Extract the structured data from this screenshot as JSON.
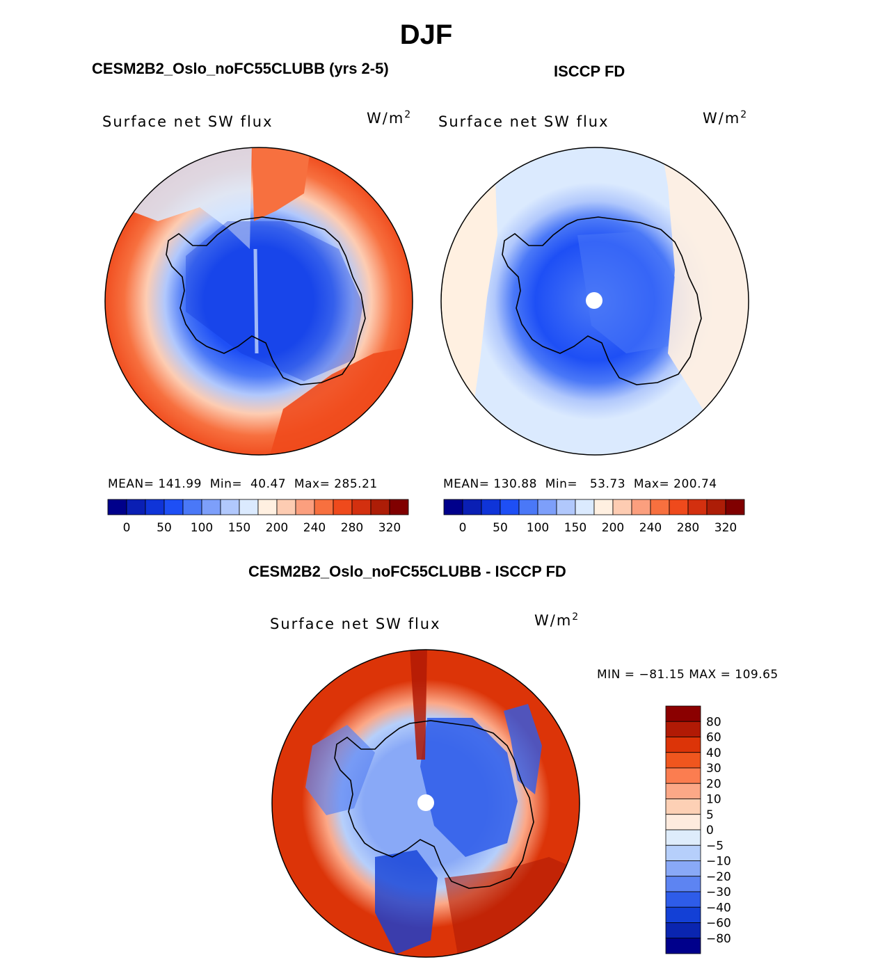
{
  "title": "DJF",
  "chart_data": [
    {
      "type": "heatmap",
      "projection": "south-polar-stereographic",
      "panel_title": "CESM2B2_Oslo_noFC55CLUBB (yrs 2-5)",
      "variable": "Surface net SW flux",
      "units_base": "W/m",
      "units_exp": "2",
      "stats": {
        "mean_label": "MEAN=",
        "mean": "141.99",
        "min_label": "Min=",
        "min": "40.47",
        "max_label": "Max=",
        "max": "285.21"
      },
      "colorbar": {
        "colors": [
          "#00008b",
          "#0a1fb4",
          "#0f34d8",
          "#1e4ff5",
          "#4a78f7",
          "#7d9ffa",
          "#b1c8fc",
          "#dbeafe",
          "#fff0e1",
          "#fdccb2",
          "#fb9f7e",
          "#f7703f",
          "#ef4a1c",
          "#d3300f",
          "#ad1d07",
          "#800000"
        ],
        "tick_labels": [
          "0",
          "50",
          "100",
          "150",
          "200",
          "240",
          "280",
          "320"
        ]
      }
    },
    {
      "type": "heatmap",
      "projection": "south-polar-stereographic",
      "panel_title": "ISCCP FD",
      "variable": "Surface net SW flux",
      "units_base": "W/m",
      "units_exp": "2",
      "stats": {
        "mean_label": "MEAN=",
        "mean": "130.88",
        "min_label": "Min=",
        "min": "53.73",
        "max_label": "Max=",
        "max": "200.74"
      },
      "colorbar": {
        "colors": [
          "#00008b",
          "#0a1fb4",
          "#0f34d8",
          "#1e4ff5",
          "#4a78f7",
          "#7d9ffa",
          "#b1c8fc",
          "#dbeafe",
          "#fff0e1",
          "#fdccb2",
          "#fb9f7e",
          "#f7703f",
          "#ef4a1c",
          "#d3300f",
          "#ad1d07",
          "#800000"
        ],
        "tick_labels": [
          "0",
          "50",
          "100",
          "150",
          "200",
          "240",
          "280",
          "320"
        ]
      }
    },
    {
      "type": "heatmap",
      "projection": "south-polar-stereographic",
      "panel_title": "CESM2B2_Oslo_noFC55CLUBB - ISCCP FD",
      "variable": "Surface net SW flux",
      "units_base": "W/m",
      "units_exp": "2",
      "minmax_text": "MIN = −81.15 MAX = 109.65",
      "colorbar": {
        "colors": [
          "#8b0000",
          "#b11a05",
          "#dc3408",
          "#f0561e",
          "#fb7d50",
          "#fca887",
          "#fdd0b5",
          "#feebde",
          "#deecfb",
          "#b6cffb",
          "#89a9f7",
          "#5d84f2",
          "#2e5ce9",
          "#1340d6",
          "#0a25b0",
          "#00008b"
        ],
        "tick_labels": [
          "80",
          "60",
          "40",
          "30",
          "20",
          "10",
          "5",
          "0",
          "−5",
          "−10",
          "−20",
          "−30",
          "−40",
          "−60",
          "−80"
        ]
      }
    }
  ]
}
